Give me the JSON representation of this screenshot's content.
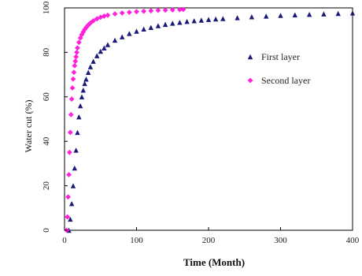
{
  "chart_data": {
    "type": "scatter",
    "xlabel": "Time (Month)",
    "ylabel": "Water cut (%)",
    "xlim": [
      0,
      400
    ],
    "ylim": [
      0,
      100
    ],
    "x_ticks": [
      "0",
      "100",
      "200",
      "300",
      "400"
    ],
    "y_ticks": [
      "0",
      "20",
      "40",
      "60",
      "80",
      "100"
    ],
    "grid": false,
    "legend_position": "right",
    "series": [
      {
        "name": "First layer",
        "color": "#1a1a7a",
        "marker": "triangle",
        "x": [
          6,
          8,
          10,
          12,
          14,
          16,
          18,
          20,
          22,
          24,
          26,
          28,
          30,
          33,
          36,
          40,
          45,
          50,
          55,
          60,
          70,
          80,
          90,
          100,
          110,
          120,
          130,
          140,
          150,
          160,
          170,
          180,
          190,
          200,
          210,
          220,
          240,
          260,
          280,
          300,
          320,
          340,
          360,
          380,
          400
        ],
        "y": [
          0,
          5,
          12,
          20,
          28,
          36,
          44,
          51,
          56,
          60,
          63,
          66,
          68,
          71,
          73.5,
          76,
          78.5,
          80.5,
          82,
          83.5,
          85.5,
          87,
          88.5,
          89.5,
          90.5,
          91.2,
          92,
          92.6,
          93.1,
          93.5,
          93.9,
          94.2,
          94.5,
          94.8,
          95,
          95.2,
          95.6,
          96,
          96.3,
          96.6,
          96.9,
          97.1,
          97.3,
          97.5,
          97.7
        ]
      },
      {
        "name": "Second layer",
        "color": "#ff22dd",
        "marker": "diamond",
        "x": [
          3,
          4,
          5,
          6,
          7,
          8,
          9,
          10,
          11,
          12,
          13,
          14,
          15,
          16,
          17,
          18,
          20,
          22,
          24,
          26,
          28,
          30,
          33,
          36,
          40,
          45,
          50,
          55,
          60,
          70,
          80,
          90,
          100,
          110,
          120,
          130,
          140,
          150,
          160,
          165
        ],
        "y": [
          0,
          6,
          15,
          25,
          35,
          44,
          52,
          59,
          64,
          68,
          71,
          74,
          76,
          78,
          80,
          82,
          84.5,
          86.5,
          88,
          89.2,
          90.3,
          91.2,
          92.3,
          93.2,
          94.2,
          95.1,
          95.8,
          96.3,
          96.7,
          97.3,
          97.7,
          98,
          98.3,
          98.5,
          98.7,
          98.9,
          99,
          99.1,
          99.2,
          99.3
        ]
      }
    ]
  }
}
